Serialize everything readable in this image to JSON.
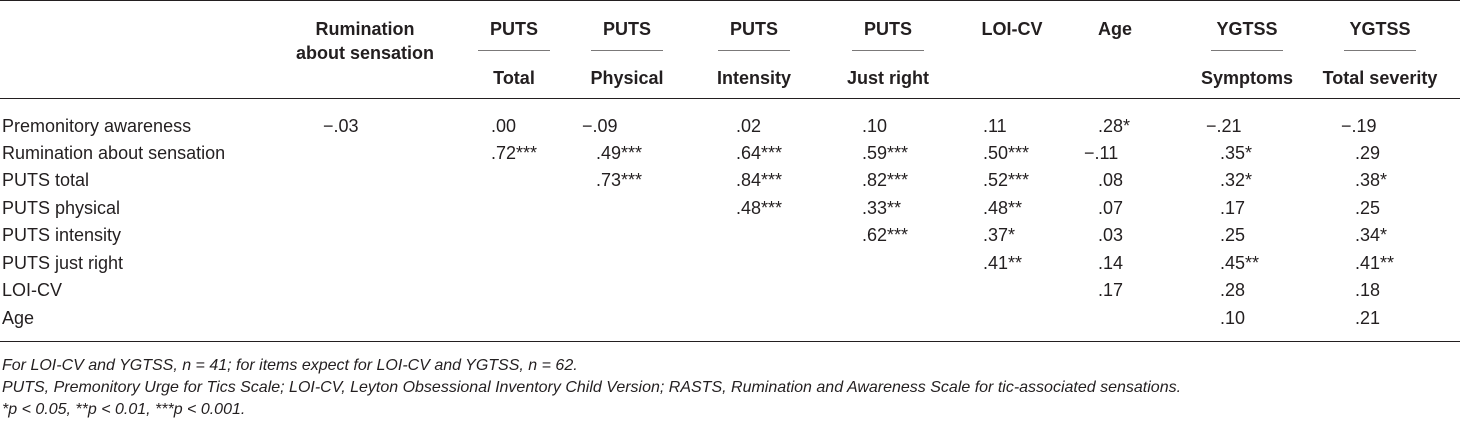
{
  "header": {
    "columns": [
      {
        "line1": "Rumination",
        "line2": "about sensation"
      },
      {
        "line1": "PUTS",
        "line2": "Total"
      },
      {
        "line1": "PUTS",
        "line2": "Physical"
      },
      {
        "line1": "PUTS",
        "line2": "Intensity"
      },
      {
        "line1": "PUTS",
        "line2": "Just right"
      },
      {
        "line1": "LOI-CV",
        "line2": ""
      },
      {
        "line1": "Age",
        "line2": ""
      },
      {
        "line1": "YGTSS",
        "line2": "Symptoms"
      },
      {
        "line1": "YGTSS",
        "line2": "Total severity"
      }
    ]
  },
  "rows": [
    {
      "label": "Premonitory awareness",
      "cells": [
        "−.03",
        ".00",
        "−.09",
        ".02",
        ".10",
        ".11",
        ".28*",
        "−.21",
        "−.19"
      ]
    },
    {
      "label": "Rumination about sensation",
      "cells": [
        "",
        ".72***",
        ".49***",
        ".64***",
        ".59***",
        ".50***",
        "−.11",
        ".35*",
        ".29"
      ]
    },
    {
      "label": "PUTS total",
      "cells": [
        "",
        "",
        ".73***",
        ".84***",
        ".82***",
        ".52***",
        ".08",
        ".32*",
        ".38*"
      ]
    },
    {
      "label": "PUTS physical",
      "cells": [
        "",
        "",
        "",
        ".48***",
        ".33**",
        ".48**",
        ".07",
        ".17",
        ".25"
      ]
    },
    {
      "label": "PUTS intensity",
      "cells": [
        "",
        "",
        "",
        "",
        ".62***",
        ".37*",
        ".03",
        ".25",
        ".34*"
      ]
    },
    {
      "label": "PUTS just right",
      "cells": [
        "",
        "",
        "",
        "",
        "",
        ".41**",
        ".14",
        ".45**",
        ".41**"
      ]
    },
    {
      "label": "LOI-CV",
      "cells": [
        "",
        "",
        "",
        "",
        "",
        "",
        ".17",
        ".28",
        ".18"
      ]
    },
    {
      "label": "Age",
      "cells": [
        "",
        "",
        "",
        "",
        "",
        "",
        "",
        ".10",
        ".21"
      ]
    }
  ],
  "notes": [
    "For LOI-CV and YGTSS, n = 41; for items expect for LOI-CV and YGTSS, n = 62.",
    "PUTS, Premonitory Urge for Tics Scale; LOI-CV, Leyton Obsessional Inventory Child Version; RASTS, Rumination and Awareness Scale for tic-associated sensations.",
    "*p < 0.05, **p < 0.01, ***p < 0.001."
  ]
}
